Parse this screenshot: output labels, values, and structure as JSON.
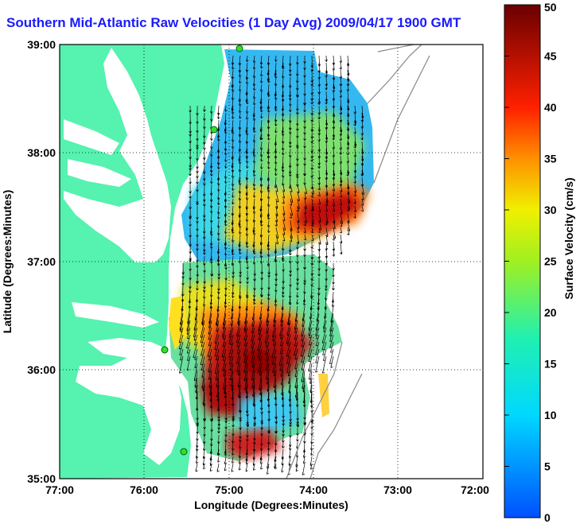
{
  "title": "Southern Mid-Atlantic Raw Velocities (1 Day Avg) 2009/04/17 1900 GMT",
  "axes": {
    "xlabel": "Longitude (Degrees:Minutes)",
    "ylabel": "Latitude (Degrees:Minutes)",
    "x_ticks": [
      "77:00",
      "76:00",
      "75:00",
      "74:00",
      "73:00",
      "72:00"
    ],
    "y_ticks": [
      "39:00",
      "38:00",
      "37:00",
      "36:00",
      "35:00"
    ]
  },
  "colorbar": {
    "label": "Surface Velocity (cm/s)",
    "ticks": [
      "50",
      "45",
      "40",
      "35",
      "30",
      "25",
      "20",
      "15",
      "10",
      "5",
      "0"
    ],
    "min": 0,
    "max": 50
  },
  "colors": {
    "land": "#55f2b0",
    "water": "#ffffff",
    "title": "#1a1aff"
  },
  "chart_data": {
    "type": "heatmap",
    "title": "Southern Mid-Atlantic Raw Velocities (1 Day Avg) 2009/04/17 1900 GMT",
    "xlabel": "Longitude (Degrees:Minutes)",
    "ylabel": "Latitude (Degrees:Minutes)",
    "xlim": [
      -77,
      -72
    ],
    "ylim": [
      35,
      39
    ],
    "grid": true,
    "colorbar_range": [
      0,
      50
    ],
    "colorbar_label": "Surface Velocity (cm/s)"
  }
}
